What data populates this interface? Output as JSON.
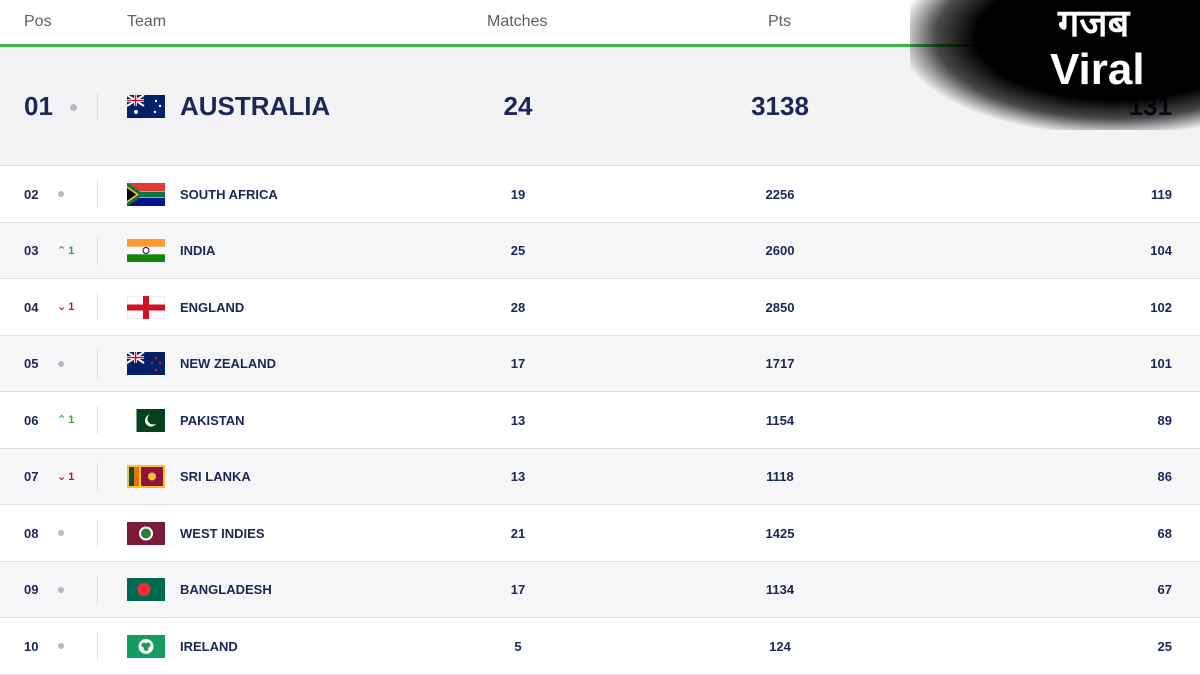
{
  "header": {
    "pos": "Pos",
    "team": "Team",
    "matches": "Matches",
    "pts": "Pts"
  },
  "logo": {
    "line1": "गजब",
    "line2": "Viral"
  },
  "table": {
    "rows": [
      {
        "pos": "01",
        "team": "AUSTRALIA",
        "matches": 24,
        "pts": 3138,
        "rating": 131
      },
      {
        "pos": "02",
        "team": "SOUTH AFRICA",
        "matches": 19,
        "pts": 2256,
        "rating": 119
      },
      {
        "pos": "03",
        "change": {
          "trend": "up",
          "value": 1
        },
        "team": "INDIA",
        "matches": 25,
        "pts": 2600,
        "rating": 104
      },
      {
        "pos": "04",
        "change": {
          "trend": "down",
          "value": 1
        },
        "team": "ENGLAND",
        "matches": 28,
        "pts": 2850,
        "rating": 102
      },
      {
        "pos": "05",
        "team": "NEW ZEALAND",
        "matches": 17,
        "pts": 1717,
        "rating": 101
      },
      {
        "pos": "06",
        "change": {
          "trend": "up",
          "value": 1
        },
        "team": "PAKISTAN",
        "matches": 13,
        "pts": 1154,
        "rating": 89
      },
      {
        "pos": "07",
        "change": {
          "trend": "down",
          "value": 1
        },
        "team": "SRI LANKA",
        "matches": 13,
        "pts": 1118,
        "rating": 86
      },
      {
        "pos": "08",
        "team": "WEST INDIES",
        "matches": 21,
        "pts": 1425,
        "rating": 68
      },
      {
        "pos": "09",
        "team": "BANGLADESH",
        "matches": 17,
        "pts": 1134,
        "rating": 67
      },
      {
        "pos": "10",
        "team": "IRELAND",
        "matches": 5,
        "pts": 124,
        "rating": 25
      }
    ]
  }
}
